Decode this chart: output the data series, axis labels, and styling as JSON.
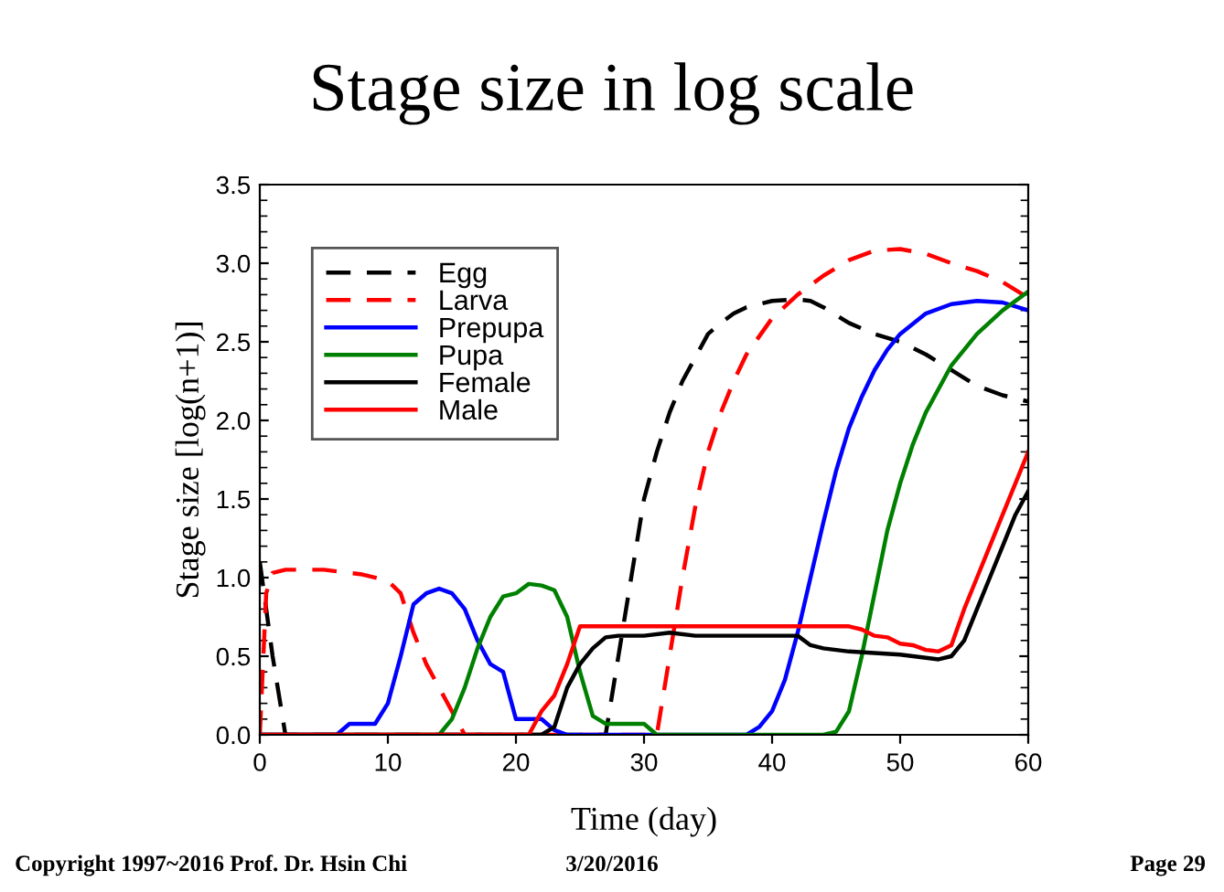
{
  "chart_data": {
    "type": "line",
    "title": "Stage size in log scale",
    "xlabel": "Time (day)",
    "ylabel": "Stage size [log(n+1)]",
    "xlim": [
      0,
      60
    ],
    "xticks": [
      0,
      10,
      20,
      30,
      40,
      50,
      60
    ],
    "ylim": [
      0,
      3.5
    ],
    "yticks": [
      {
        "value": 0,
        "label": "0.0"
      },
      {
        "value": 0.5,
        "label": "0.5"
      },
      {
        "value": 1,
        "label": "1.0"
      },
      {
        "value": 1.5,
        "label": "1.5"
      },
      {
        "value": 2,
        "label": "2.0"
      },
      {
        "value": 2.5,
        "label": "2.5"
      },
      {
        "value": 3,
        "label": "3.0"
      },
      {
        "value": 3.5,
        "label": "3.5"
      }
    ],
    "grid": false,
    "legend": "top left",
    "marker": "none",
    "series": [
      {
        "name": "Egg",
        "color": "#000000",
        "line_style": "dashed",
        "x": [
          0,
          1,
          2,
          27,
          28,
          29,
          30,
          31,
          32,
          33,
          34,
          35,
          36,
          37,
          38,
          40,
          42,
          43,
          44,
          46,
          48,
          50,
          52,
          54,
          56,
          58,
          60
        ],
        "values": [
          1.1,
          0.5,
          0,
          0,
          0.5,
          1.0,
          1.5,
          1.8,
          2.05,
          2.25,
          2.4,
          2.55,
          2.62,
          2.68,
          2.72,
          2.76,
          2.77,
          2.76,
          2.72,
          2.62,
          2.55,
          2.5,
          2.42,
          2.32,
          2.22,
          2.16,
          2.12
        ]
      },
      {
        "name": "Larva",
        "color": "#ff0000",
        "line_style": "dashed",
        "x": [
          0,
          0.5,
          1,
          2,
          5,
          8,
          10,
          11,
          12,
          13,
          14,
          15,
          16,
          31,
          32,
          33,
          34,
          35,
          36,
          37,
          38,
          40,
          42,
          44,
          46,
          48,
          50,
          52,
          54,
          56,
          58,
          60
        ],
        "values": [
          0,
          0.9,
          1.03,
          1.05,
          1.05,
          1.02,
          0.98,
          0.9,
          0.65,
          0.45,
          0.3,
          0.15,
          0,
          0,
          0.5,
          1.0,
          1.45,
          1.8,
          2.05,
          2.25,
          2.42,
          2.65,
          2.8,
          2.92,
          3.02,
          3.08,
          3.09,
          3.06,
          3.0,
          2.95,
          2.88,
          2.78
        ]
      },
      {
        "name": "Prepupa",
        "color": "#0000ff",
        "line_style": "solid",
        "x": [
          0,
          6,
          7,
          9,
          10,
          11,
          12,
          13,
          14,
          15,
          16,
          17,
          18,
          19,
          20,
          22,
          23,
          24,
          38,
          39,
          40,
          41,
          42,
          43,
          44,
          45,
          46,
          47,
          48,
          49,
          50,
          52,
          54,
          56,
          58,
          60
        ],
        "values": [
          0,
          0,
          0.07,
          0.07,
          0.2,
          0.5,
          0.83,
          0.9,
          0.93,
          0.9,
          0.8,
          0.6,
          0.45,
          0.4,
          0.1,
          0.1,
          0.03,
          0,
          0,
          0.05,
          0.15,
          0.35,
          0.65,
          1.0,
          1.35,
          1.68,
          1.95,
          2.15,
          2.32,
          2.45,
          2.55,
          2.68,
          2.74,
          2.76,
          2.75,
          2.7
        ]
      },
      {
        "name": "Pupa",
        "color": "#008000",
        "line_style": "solid",
        "x": [
          0,
          14,
          15,
          16,
          17,
          18,
          19,
          20,
          21,
          22,
          23,
          24,
          25,
          26,
          27,
          30,
          31,
          44,
          45,
          46,
          47,
          48,
          49,
          50,
          51,
          52,
          54,
          56,
          58,
          60
        ],
        "values": [
          0,
          0,
          0.1,
          0.3,
          0.55,
          0.75,
          0.88,
          0.9,
          0.96,
          0.95,
          0.92,
          0.75,
          0.4,
          0.12,
          0.07,
          0.07,
          0,
          0,
          0.02,
          0.15,
          0.5,
          0.9,
          1.3,
          1.6,
          1.85,
          2.05,
          2.35,
          2.55,
          2.7,
          2.82
        ]
      },
      {
        "name": "Female",
        "color": "#000000",
        "line_style": "solid",
        "x": [
          0,
          22,
          23,
          24,
          25,
          26,
          27,
          28,
          30,
          32,
          34,
          42,
          43,
          44,
          46,
          48,
          50,
          52,
          53,
          54,
          55,
          56,
          57,
          58,
          59,
          60
        ],
        "values": [
          0,
          0,
          0.05,
          0.3,
          0.45,
          0.55,
          0.62,
          0.63,
          0.63,
          0.65,
          0.63,
          0.63,
          0.57,
          0.55,
          0.53,
          0.52,
          0.51,
          0.49,
          0.48,
          0.5,
          0.6,
          0.8,
          1.0,
          1.2,
          1.4,
          1.55
        ]
      },
      {
        "name": "Male",
        "color": "#ff0000",
        "line_style": "solid",
        "x": [
          0,
          21,
          22,
          23,
          24,
          25,
          46,
          47,
          48,
          49,
          50,
          51,
          52,
          53,
          54,
          55,
          56,
          57,
          58,
          59,
          60
        ],
        "values": [
          0,
          0,
          0.15,
          0.25,
          0.45,
          0.69,
          0.69,
          0.67,
          0.63,
          0.62,
          0.58,
          0.57,
          0.54,
          0.53,
          0.57,
          0.8,
          1.0,
          1.2,
          1.4,
          1.6,
          1.8
        ]
      }
    ],
    "annotations": [
      "Copyright 1997~2016 Prof. Dr. Hsin Chi",
      "3/20/2016",
      "Page 29"
    ]
  }
}
